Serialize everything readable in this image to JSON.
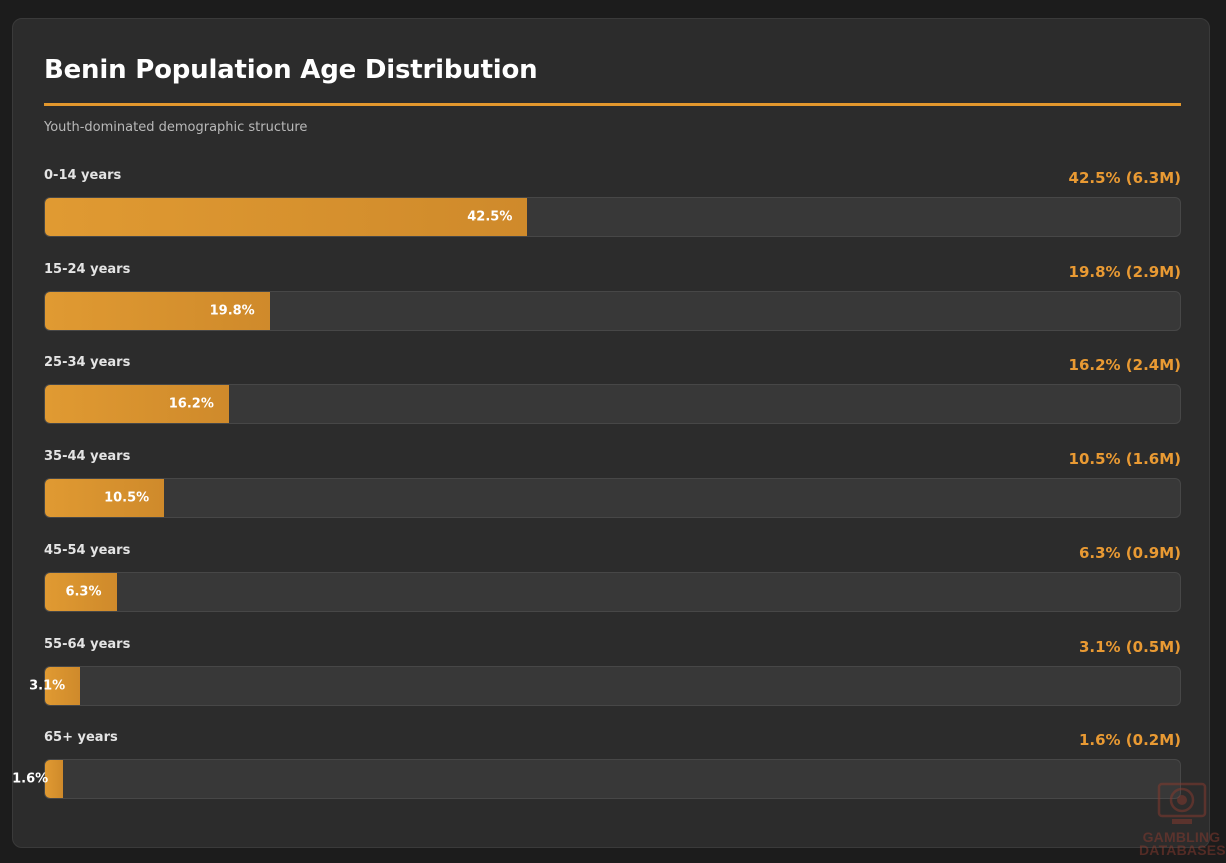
{
  "chart_data": {
    "type": "bar",
    "orientation": "horizontal",
    "title": "Benin Population Age Distribution",
    "subtitle": "Youth-dominated demographic structure",
    "xlim": [
      0,
      100
    ],
    "accent_color": "#e2972d",
    "rows": [
      {
        "label": "0-14 years",
        "value": 42.5,
        "bar_label": "42.5%",
        "summary": "42.5% (6.3M)"
      },
      {
        "label": "15-24 years",
        "value": 19.8,
        "bar_label": "19.8%",
        "summary": "19.8% (2.9M)"
      },
      {
        "label": "25-34 years",
        "value": 16.2,
        "bar_label": "16.2%",
        "summary": "16.2% (2.4M)"
      },
      {
        "label": "35-44 years",
        "value": 10.5,
        "bar_label": "10.5%",
        "summary": "10.5% (1.6M)"
      },
      {
        "label": "45-54 years",
        "value": 6.3,
        "bar_label": "6.3%",
        "summary": "6.3% (0.9M)"
      },
      {
        "label": "55-64 years",
        "value": 3.1,
        "bar_label": "3.1%",
        "summary": "3.1% (0.5M)"
      },
      {
        "label": "65+ years",
        "value": 1.6,
        "bar_label": "1.6%",
        "summary": "1.6% (0.2M)"
      }
    ]
  },
  "watermark": {
    "text": "GAMBLING DATABASES",
    "icon": "casino-chip-monitor-icon"
  }
}
